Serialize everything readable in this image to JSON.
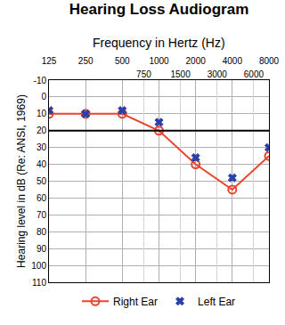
{
  "chart_data": {
    "type": "line",
    "title": "Hearing Loss Audiogram",
    "xlabel": "Frequency in Hertz (Hz)",
    "ylabel": "Hearing level in dB (Re: ANSI, 1969)",
    "x": [
      125,
      250,
      500,
      1000,
      2000,
      4000,
      8000
    ],
    "series": [
      {
        "name": "Right Ear",
        "color": "#e8452c",
        "marker": "circle-open",
        "line_style": "solid",
        "values": [
          10,
          10,
          10,
          20,
          40,
          55,
          35
        ]
      },
      {
        "name": "Left Ear",
        "color": "#2b3fa8",
        "marker": "x",
        "line_style": "none",
        "values": [
          8,
          10,
          8,
          15,
          36,
          48,
          30
        ]
      }
    ],
    "log": "x",
    "xlim": [
      125,
      8000
    ],
    "xticks": [
      125,
      250,
      500,
      750,
      1000,
      1500,
      2000,
      3000,
      4000,
      6000,
      8000
    ],
    "ylim": [
      110,
      -10
    ],
    "yticks": [
      -10,
      0,
      10,
      20,
      30,
      40,
      50,
      60,
      70,
      80,
      90,
      100,
      110
    ],
    "reference_line": 20,
    "grid": true,
    "legend": "bottom"
  }
}
